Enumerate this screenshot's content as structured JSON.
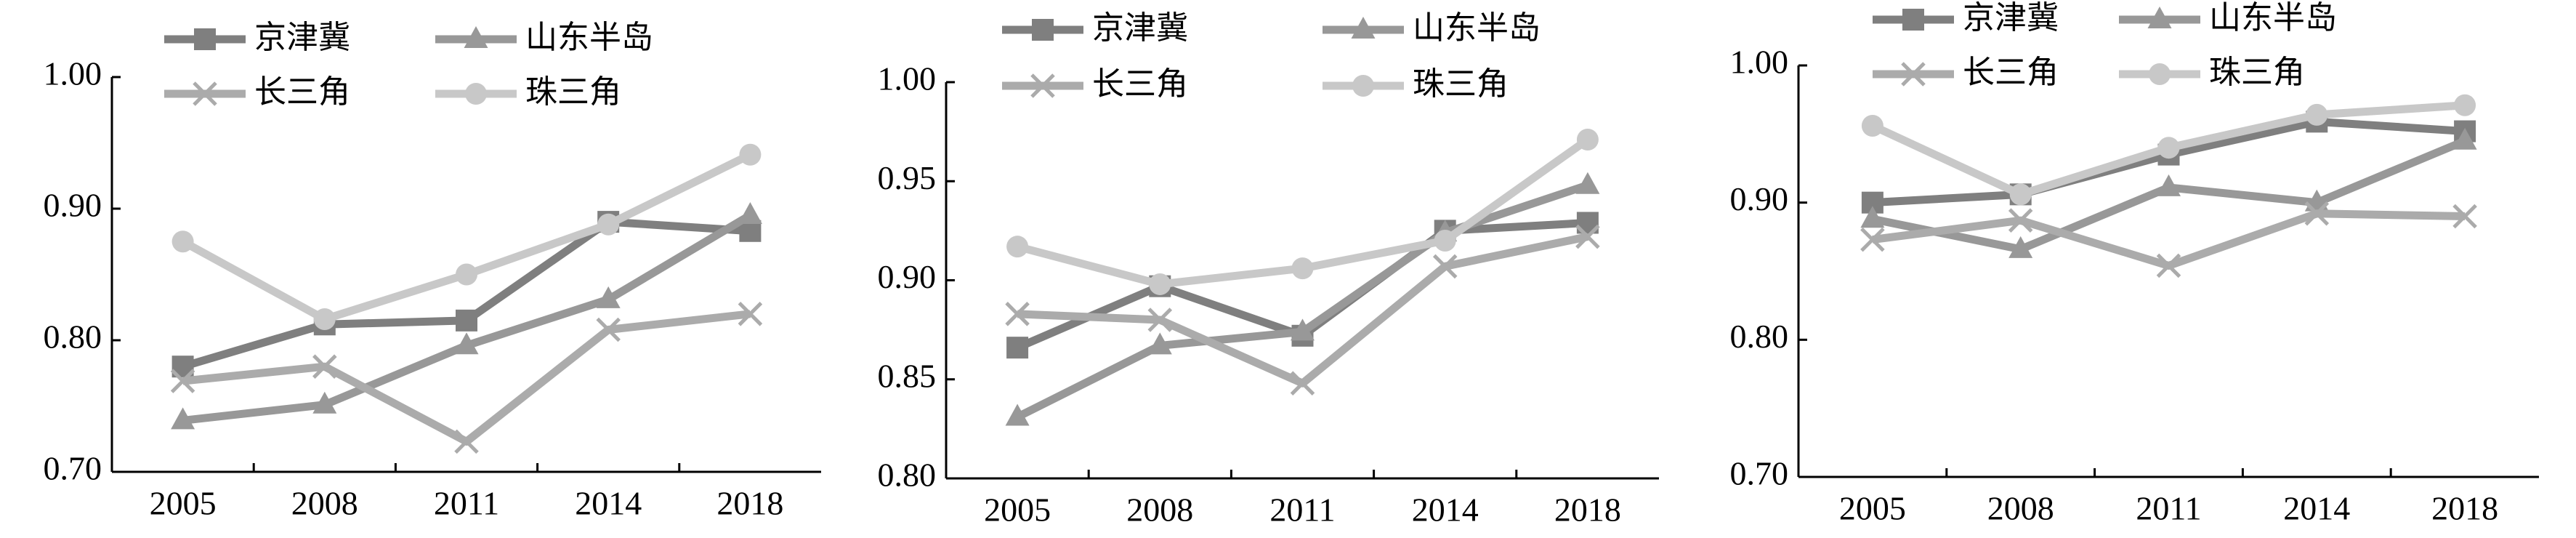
{
  "chart_data": [
    {
      "type": "line",
      "categories": [
        "2005",
        "2008",
        "2011",
        "2014",
        "2018"
      ],
      "ylim": [
        0.7,
        1.0
      ],
      "yticks": [
        {
          "value": 0.7,
          "label": "0.70"
        },
        {
          "value": 0.8,
          "label": "0.80"
        },
        {
          "value": 0.9,
          "label": "0.90"
        },
        {
          "value": 1.0,
          "label": "1.00"
        }
      ],
      "grid": false,
      "series": [
        {
          "name": "京津冀",
          "color": "#7f7f7f",
          "marker": "square",
          "values": [
            0.78,
            0.812,
            0.815,
            0.89,
            0.883
          ]
        },
        {
          "name": "山东半岛",
          "color": "#989898",
          "marker": "triangle",
          "values": [
            0.739,
            0.751,
            0.796,
            0.831,
            0.895
          ]
        },
        {
          "name": "长三角",
          "color": "#ababab",
          "marker": "x",
          "values": [
            0.769,
            0.78,
            0.723,
            0.808,
            0.82
          ]
        },
        {
          "name": "珠三角",
          "color": "#c8c8c8",
          "marker": "circle",
          "values": [
            0.875,
            0.816,
            0.85,
            0.888,
            0.941
          ]
        }
      ]
    },
    {
      "type": "line",
      "categories": [
        "2005",
        "2008",
        "2011",
        "2014",
        "2018"
      ],
      "ylim": [
        0.8,
        1.0
      ],
      "yticks": [
        {
          "value": 0.8,
          "label": "0.80"
        },
        {
          "value": 0.85,
          "label": "0.85"
        },
        {
          "value": 0.9,
          "label": "0.90"
        },
        {
          "value": 0.95,
          "label": "0.95"
        },
        {
          "value": 1.0,
          "label": "1.00"
        }
      ],
      "grid": false,
      "series": [
        {
          "name": "京津冀",
          "color": "#7f7f7f",
          "marker": "square",
          "values": [
            0.866,
            0.897,
            0.872,
            0.925,
            0.929
          ]
        },
        {
          "name": "山东半岛",
          "color": "#989898",
          "marker": "triangle",
          "values": [
            0.831,
            0.867,
            0.874,
            0.924,
            0.948
          ]
        },
        {
          "name": "长三角",
          "color": "#ababab",
          "marker": "x",
          "values": [
            0.883,
            0.88,
            0.848,
            0.907,
            0.922
          ]
        },
        {
          "name": "珠三角",
          "color": "#c8c8c8",
          "marker": "circle",
          "values": [
            0.917,
            0.898,
            0.906,
            0.92,
            0.971
          ]
        }
      ]
    },
    {
      "type": "line",
      "categories": [
        "2005",
        "2008",
        "2011",
        "2014",
        "2018"
      ],
      "ylim": [
        0.7,
        1.0
      ],
      "yticks": [
        {
          "value": 0.7,
          "label": "0.70"
        },
        {
          "value": 0.8,
          "label": "0.80"
        },
        {
          "value": 0.9,
          "label": "0.90"
        },
        {
          "value": 1.0,
          "label": "1.00"
        }
      ],
      "grid": false,
      "series": [
        {
          "name": "京津冀",
          "color": "#7f7f7f",
          "marker": "square",
          "values": [
            0.9,
            0.906,
            0.935,
            0.959,
            0.952
          ]
        },
        {
          "name": "山东半岛",
          "color": "#989898",
          "marker": "triangle",
          "values": [
            0.888,
            0.866,
            0.911,
            0.9,
            0.945
          ]
        },
        {
          "name": "长三角",
          "color": "#ababab",
          "marker": "x",
          "values": [
            0.873,
            0.887,
            0.854,
            0.892,
            0.89
          ]
        },
        {
          "name": "珠三角",
          "color": "#c8c8c8",
          "marker": "circle",
          "values": [
            0.956,
            0.906,
            0.94,
            0.964,
            0.971
          ]
        }
      ]
    }
  ]
}
